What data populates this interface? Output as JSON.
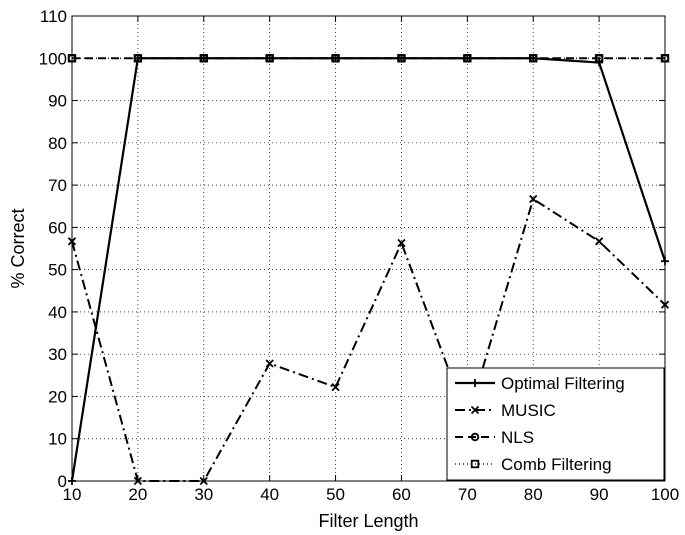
{
  "chart_data": {
    "type": "line",
    "xlabel": "Filter Length",
    "ylabel": "% Correct",
    "xlim": [
      10,
      100
    ],
    "ylim": [
      0,
      110
    ],
    "xticks": [
      10,
      20,
      30,
      40,
      50,
      60,
      70,
      80,
      90,
      100
    ],
    "yticks": [
      0,
      10,
      20,
      30,
      40,
      50,
      60,
      70,
      80,
      90,
      100,
      110
    ],
    "grid": true,
    "legend_position": "bottom-right",
    "x": [
      10,
      20,
      30,
      40,
      50,
      60,
      70,
      80,
      90,
      100
    ],
    "series": [
      {
        "name": "Optimal Filtering",
        "line_style": "solid",
        "marker": "plus",
        "values": [
          0,
          100,
          100,
          100,
          100,
          100,
          100,
          100,
          99,
          52
        ]
      },
      {
        "name": "MUSIC",
        "line_style": "dash-dot",
        "marker": "x",
        "values": [
          56.7,
          0,
          0,
          27.8,
          22.2,
          56.3,
          14.5,
          66.7,
          56.7,
          41.7
        ]
      },
      {
        "name": "NLS",
        "line_style": "dashed",
        "marker": "circle",
        "values": [
          100,
          100,
          100,
          100,
          100,
          100,
          100,
          100,
          100,
          100
        ]
      },
      {
        "name": "Comb Filtering",
        "line_style": "dotted",
        "marker": "square",
        "values": [
          100,
          100,
          100,
          100,
          100,
          100,
          100,
          100,
          100,
          100
        ]
      }
    ]
  }
}
